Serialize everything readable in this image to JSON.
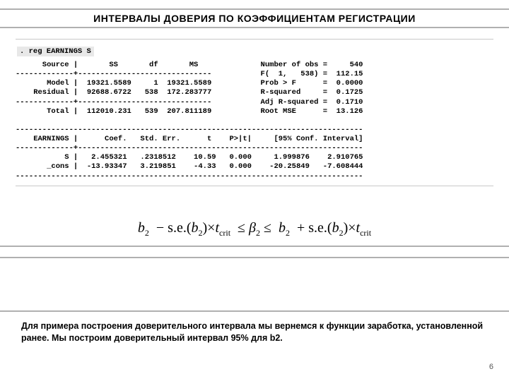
{
  "title": "ИНТЕРВАЛЫ ДОВЕРИЯ ПО КОЭФФИЦИЕНТАМ РЕГИСТРАЦИИ",
  "command": ". reg EARNINGS S",
  "stata_output": "      Source |       SS       df       MS              Number of obs =     540\n-------------+------------------------------           F(  1,   538) =  112.15\n       Model |  19321.5589     1  19321.5589           Prob > F      =  0.0000\n    Residual |  92688.6722   538  172.283777           R-squared     =  0.1725\n-------------+------------------------------           Adj R-squared =  0.1710\n       Total |  112010.231   539  207.811189           Root MSE      =  13.126\n\n------------------------------------------------------------------------------\n    EARNINGS |      Coef.   Std. Err.      t    P>|t|     [95% Conf. Interval]\n-------------+----------------------------------------------------------------\n           S |   2.455321   .2318512    10.59   0.000     1.999876    2.910765\n       _cons |  -13.93347   3.219851    -4.33   0.000    -20.25849   -7.608444\n------------------------------------------------------------------------------",
  "formula": {
    "b": "b",
    "two": "2",
    "se": "s.e.",
    "t": "t",
    "crit": "crit",
    "beta": "β"
  },
  "caption": "Для примера построения доверительного интервала мы вернемся к функции заработка, установленной ранее. Мы построим доверительный интервал 95% для b2.",
  "pagenum": "6",
  "colors": {
    "band_border": "#b0b0b0",
    "cmd_bg": "#e8e8e8",
    "text": "#000000",
    "pagenum": "#555555"
  }
}
